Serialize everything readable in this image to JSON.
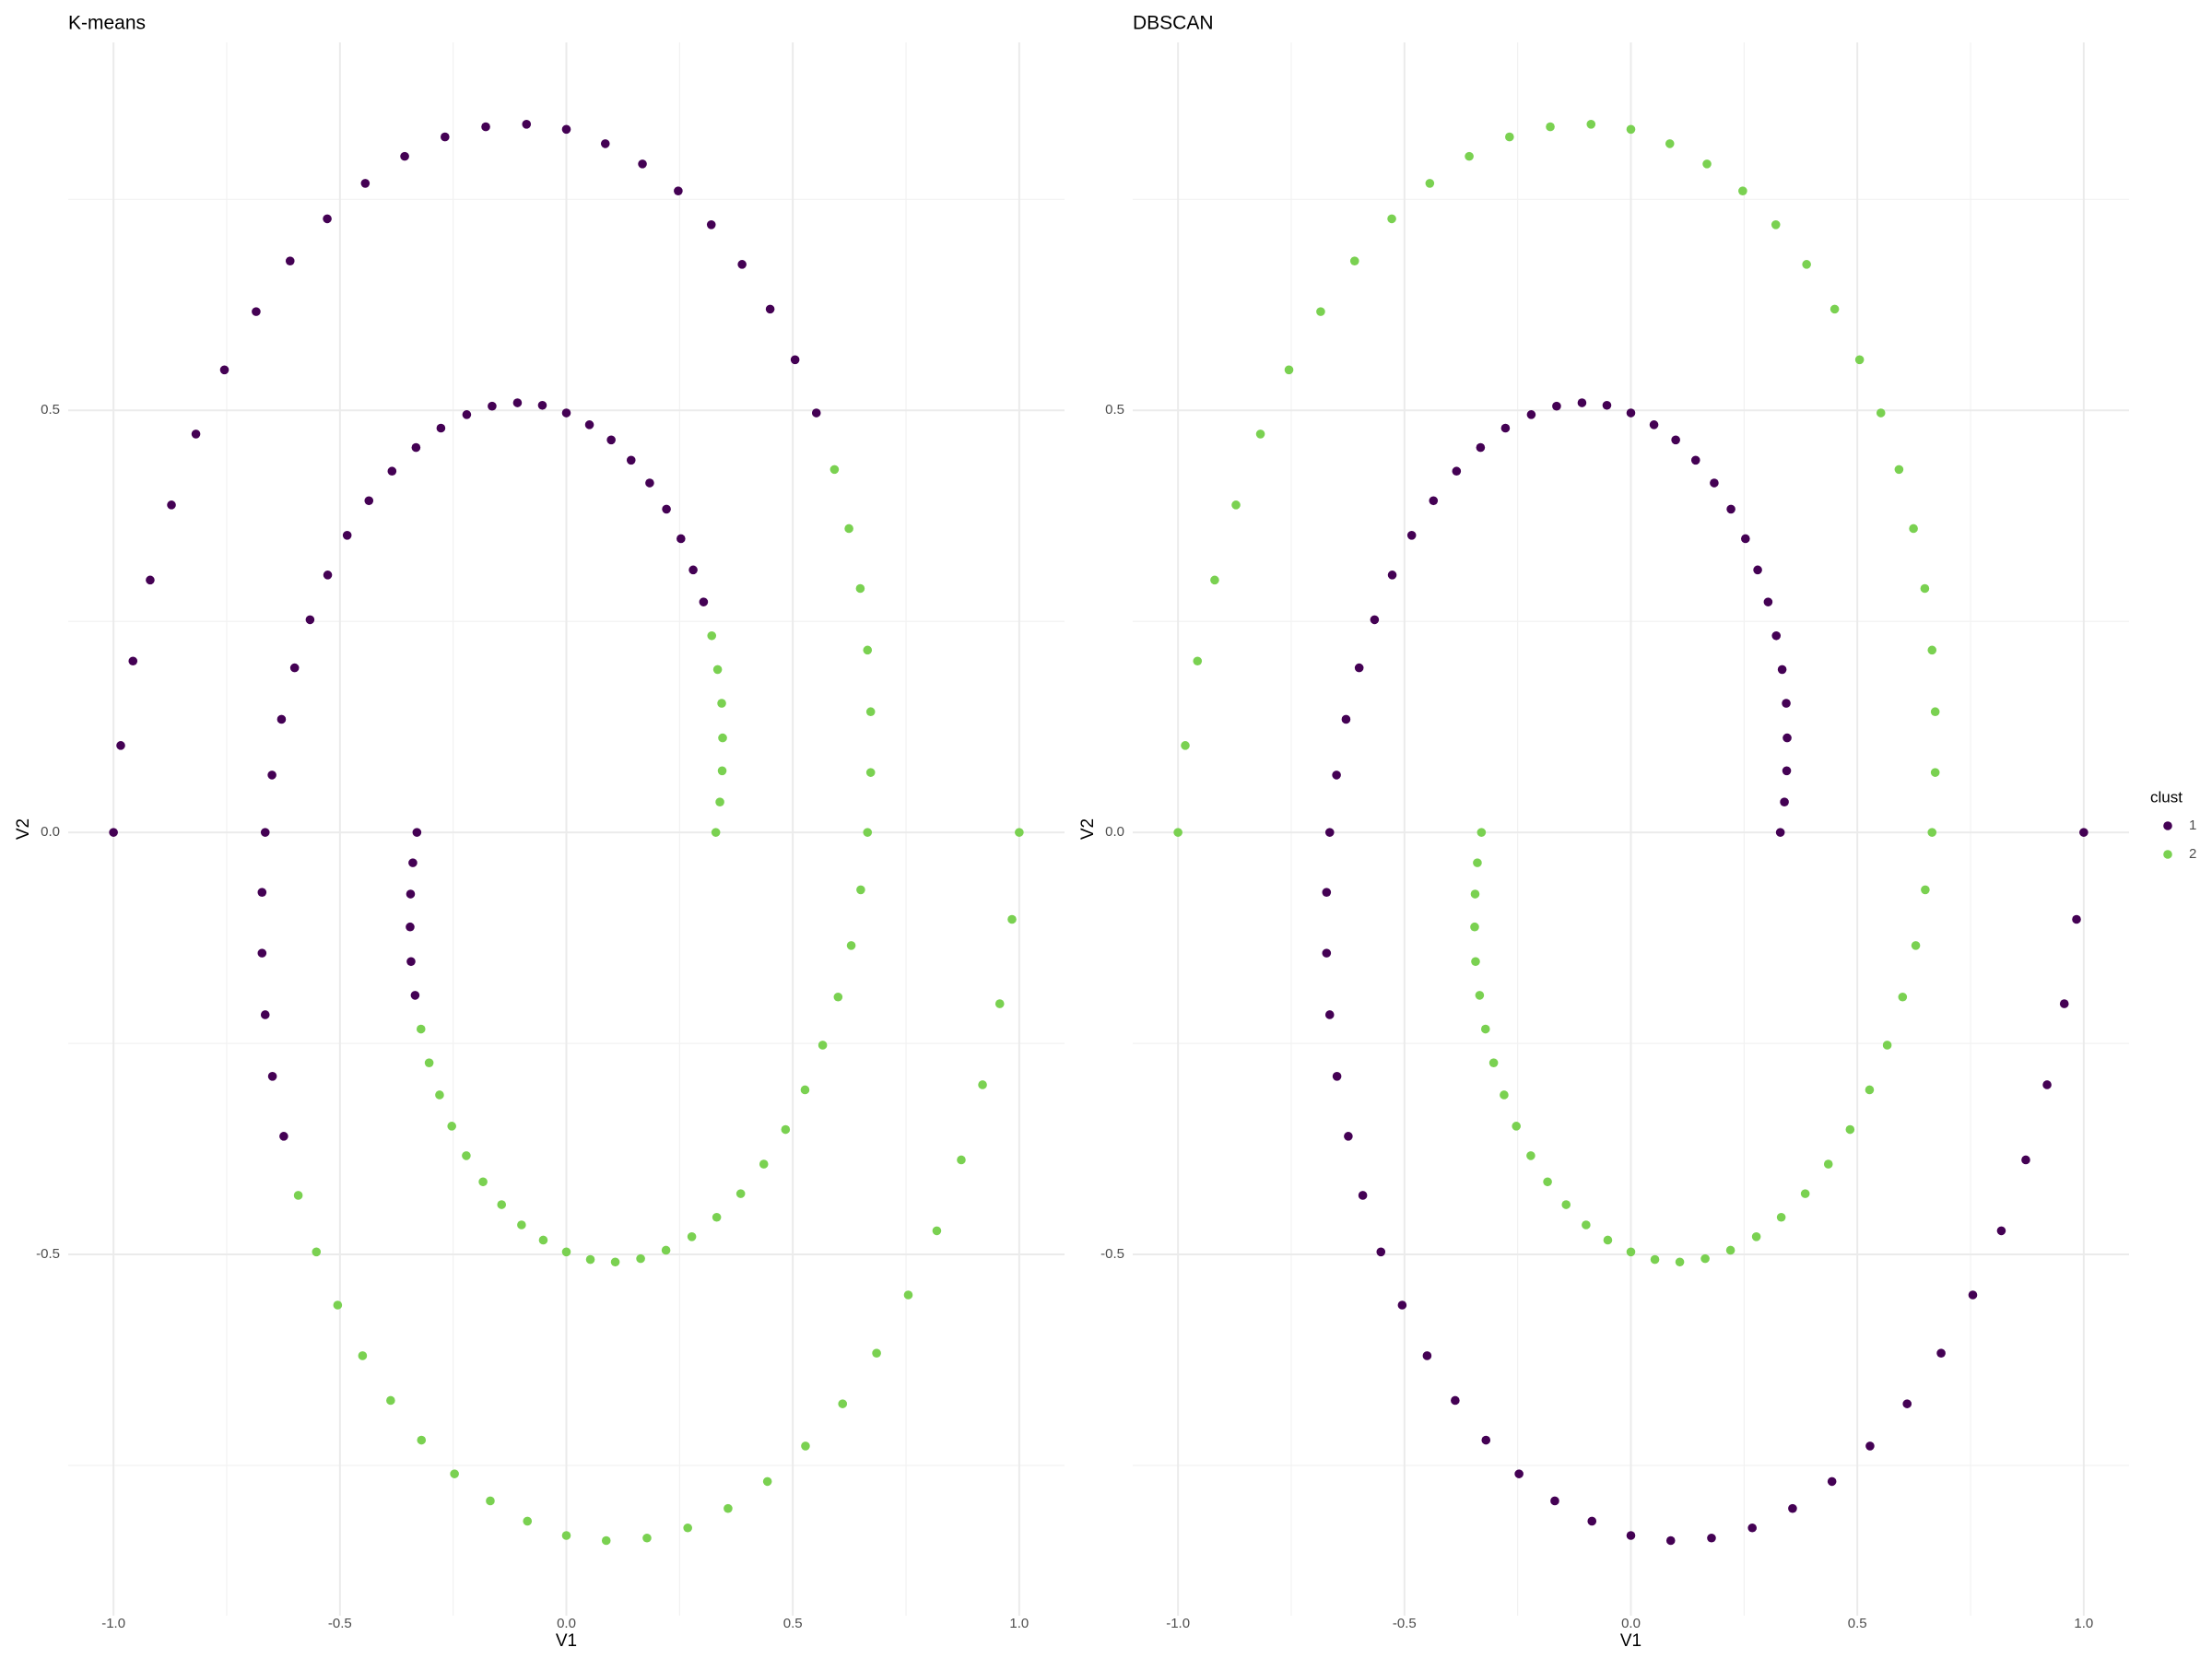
{
  "chart_data": [
    {
      "type": "scatter",
      "title": "K-means",
      "x_label": "V1",
      "y_label": "V2",
      "xlim": [
        -1.1,
        1.1
      ],
      "ylim": [
        -0.928,
        0.936
      ],
      "xticks": [
        {
          "value": -1,
          "label": "-1.0"
        },
        -0.5,
        {
          "value": 0,
          "label": "0.0"
        },
        0.5,
        {
          "value": 1,
          "label": "1.0"
        }
      ],
      "yticks": [
        -0.5,
        {
          "value": 0,
          "label": "0.0"
        },
        0.5
      ],
      "grid": true,
      "series": [
        {
          "name": "1",
          "color": "#440154",
          "x": [
            -1,
            -0.984,
            -0.957,
            -0.919,
            -0.872,
            -0.818,
            -0.755,
            -0.685,
            -0.61,
            -0.528,
            -0.444,
            -0.357,
            -0.268,
            -0.178,
            -0.088,
            0,
            0.086,
            0.168,
            0.247,
            0.32,
            0.388,
            0.45,
            0.505,
            0.552,
            -0.334,
            -0.343,
            -0.345,
            -0.344,
            -0.339,
            -0.33,
            -0.624,
            -0.649,
            -0.665,
            -0.672,
            -0.672,
            -0.665,
            -0.65,
            -0.629,
            -0.6,
            -0.566,
            -0.527,
            -0.484,
            -0.436,
            -0.385,
            -0.332,
            -0.277,
            -0.22,
            -0.164,
            -0.108,
            -0.053,
            0,
            0.051,
            0.099,
            0.143,
            0.184,
            0.221,
            0.253,
            0.28,
            0.303
          ],
          "values": [
            0,
            0.103,
            0.203,
            0.299,
            0.388,
            0.472,
            0.548,
            0.617,
            0.677,
            0.727,
            0.769,
            0.801,
            0.824,
            0.836,
            0.839,
            0.833,
            0.816,
            0.792,
            0.76,
            0.72,
            0.673,
            0.62,
            0.56,
            0.497,
            -0.193,
            -0.153,
            -0.112,
            -0.073,
            -0.036,
            0,
            -0.36,
            -0.289,
            -0.216,
            -0.143,
            -0.071,
            0,
            0.068,
            0.134,
            0.195,
            0.252,
            0.305,
            0.352,
            0.393,
            0.428,
            0.456,
            0.479,
            0.495,
            0.505,
            0.509,
            0.506,
            0.497,
            0.483,
            0.465,
            0.441,
            0.414,
            0.383,
            0.348,
            0.311,
            0.273
          ]
        },
        {
          "name": "2",
          "color": "#7AD151",
          "x": [
            0.592,
            0.624,
            0.649,
            0.665,
            0.672,
            0.672,
            0.665,
            0.65,
            0.629,
            0.6,
            0.566,
            0.527,
            0.484,
            0.436,
            0.385,
            0.332,
            0.277,
            0.22,
            0.164,
            0.108,
            0.053,
            0,
            -0.051,
            -0.099,
            -0.143,
            -0.184,
            -0.221,
            -0.253,
            -0.28,
            -0.303,
            -0.321,
            1,
            0.984,
            0.957,
            0.919,
            0.872,
            0.818,
            0.755,
            0.685,
            0.61,
            0.528,
            0.444,
            0.357,
            0.268,
            0.178,
            0.088,
            0,
            -0.086,
            -0.168,
            -0.247,
            -0.32,
            -0.388,
            -0.45,
            -0.505,
            -0.552,
            -0.592,
            0.321,
            0.334,
            0.343,
            0.345,
            0.344,
            0.339,
            0.33
          ],
          "values": [
            0.43,
            0.36,
            0.289,
            0.216,
            0.143,
            0.071,
            0,
            -0.068,
            -0.134,
            -0.195,
            -0.252,
            -0.305,
            -0.352,
            -0.393,
            -0.428,
            -0.456,
            -0.479,
            -0.495,
            -0.505,
            -0.509,
            -0.506,
            -0.497,
            -0.483,
            -0.465,
            -0.441,
            -0.414,
            -0.383,
            -0.348,
            -0.311,
            -0.273,
            -0.233,
            0,
            -0.103,
            -0.203,
            -0.299,
            -0.388,
            -0.472,
            -0.548,
            -0.617,
            -0.677,
            -0.727,
            -0.769,
            -0.801,
            -0.824,
            -0.836,
            -0.839,
            -0.833,
            -0.816,
            -0.792,
            -0.76,
            -0.72,
            -0.673,
            -0.62,
            -0.56,
            -0.497,
            -0.43,
            0.233,
            0.193,
            0.153,
            0.112,
            0.073,
            0.036,
            0
          ]
        }
      ]
    },
    {
      "type": "scatter",
      "title": "DBSCAN",
      "x_label": "V1",
      "y_label": "V2",
      "xlim": [
        -1.1,
        1.1
      ],
      "ylim": [
        -0.928,
        0.936
      ],
      "xticks": [
        {
          "value": -1,
          "label": "-1.0"
        },
        -0.5,
        {
          "value": 0,
          "label": "0.0"
        },
        0.5,
        {
          "value": 1,
          "label": "1.0"
        }
      ],
      "yticks": [
        -0.5,
        {
          "value": 0,
          "label": "0.0"
        },
        0.5
      ],
      "grid": true,
      "legend_title": "clust",
      "legend": "right",
      "series": [
        {
          "name": "1",
          "color": "#440154",
          "x": [
            1,
            0.984,
            0.957,
            0.919,
            0.872,
            0.818,
            0.755,
            0.685,
            0.61,
            0.528,
            0.444,
            0.357,
            0.268,
            0.178,
            0.088,
            0,
            -0.086,
            -0.168,
            -0.247,
            -0.32,
            -0.388,
            -0.45,
            -0.505,
            -0.552,
            -0.592,
            -0.624,
            -0.649,
            -0.665,
            -0.672,
            -0.672,
            -0.665,
            -0.65,
            -0.629,
            -0.6,
            -0.566,
            -0.527,
            -0.484,
            -0.436,
            -0.385,
            -0.332,
            -0.277,
            -0.22,
            -0.164,
            -0.108,
            -0.053,
            0,
            0.051,
            0.099,
            0.143,
            0.184,
            0.221,
            0.253,
            0.28,
            0.303,
            0.321,
            0.334,
            0.343,
            0.345,
            0.344,
            0.339,
            0.33
          ],
          "values": [
            0,
            -0.103,
            -0.203,
            -0.299,
            -0.388,
            -0.472,
            -0.548,
            -0.617,
            -0.677,
            -0.727,
            -0.769,
            -0.801,
            -0.824,
            -0.836,
            -0.839,
            -0.833,
            -0.816,
            -0.792,
            -0.76,
            -0.72,
            -0.673,
            -0.62,
            -0.56,
            -0.497,
            -0.43,
            -0.36,
            -0.289,
            -0.216,
            -0.143,
            -0.071,
            0,
            0.068,
            0.134,
            0.195,
            0.252,
            0.305,
            0.352,
            0.393,
            0.428,
            0.456,
            0.479,
            0.495,
            0.505,
            0.509,
            0.506,
            0.497,
            0.483,
            0.465,
            0.441,
            0.414,
            0.383,
            0.348,
            0.311,
            0.273,
            0.233,
            0.193,
            0.153,
            0.112,
            0.073,
            0.036,
            0
          ]
        },
        {
          "name": "2",
          "color": "#7AD151",
          "x": [
            -1,
            -0.984,
            -0.957,
            -0.919,
            -0.872,
            -0.818,
            -0.755,
            -0.685,
            -0.61,
            -0.528,
            -0.444,
            -0.357,
            -0.268,
            -0.178,
            -0.088,
            0,
            0.086,
            0.168,
            0.247,
            0.32,
            0.388,
            0.45,
            0.505,
            0.552,
            0.592,
            0.624,
            0.649,
            0.665,
            0.672,
            0.672,
            0.665,
            0.65,
            0.629,
            0.6,
            0.566,
            0.527,
            0.484,
            0.436,
            0.385,
            0.332,
            0.277,
            0.22,
            0.164,
            0.108,
            0.053,
            0,
            -0.051,
            -0.099,
            -0.143,
            -0.184,
            -0.221,
            -0.253,
            -0.28,
            -0.303,
            -0.321,
            -0.334,
            -0.343,
            -0.345,
            -0.344,
            -0.339,
            -0.33
          ],
          "values": [
            0,
            0.103,
            0.203,
            0.299,
            0.388,
            0.472,
            0.548,
            0.617,
            0.677,
            0.727,
            0.769,
            0.801,
            0.824,
            0.836,
            0.839,
            0.833,
            0.816,
            0.792,
            0.76,
            0.72,
            0.673,
            0.62,
            0.56,
            0.497,
            0.43,
            0.36,
            0.289,
            0.216,
            0.143,
            0.071,
            0,
            -0.068,
            -0.134,
            -0.195,
            -0.252,
            -0.305,
            -0.352,
            -0.393,
            -0.428,
            -0.456,
            -0.479,
            -0.495,
            -0.505,
            -0.509,
            -0.506,
            -0.497,
            -0.483,
            -0.465,
            -0.441,
            -0.414,
            -0.383,
            -0.348,
            -0.311,
            -0.273,
            -0.233,
            -0.193,
            -0.153,
            -0.112,
            -0.073,
            -0.036,
            0
          ]
        }
      ]
    }
  ]
}
